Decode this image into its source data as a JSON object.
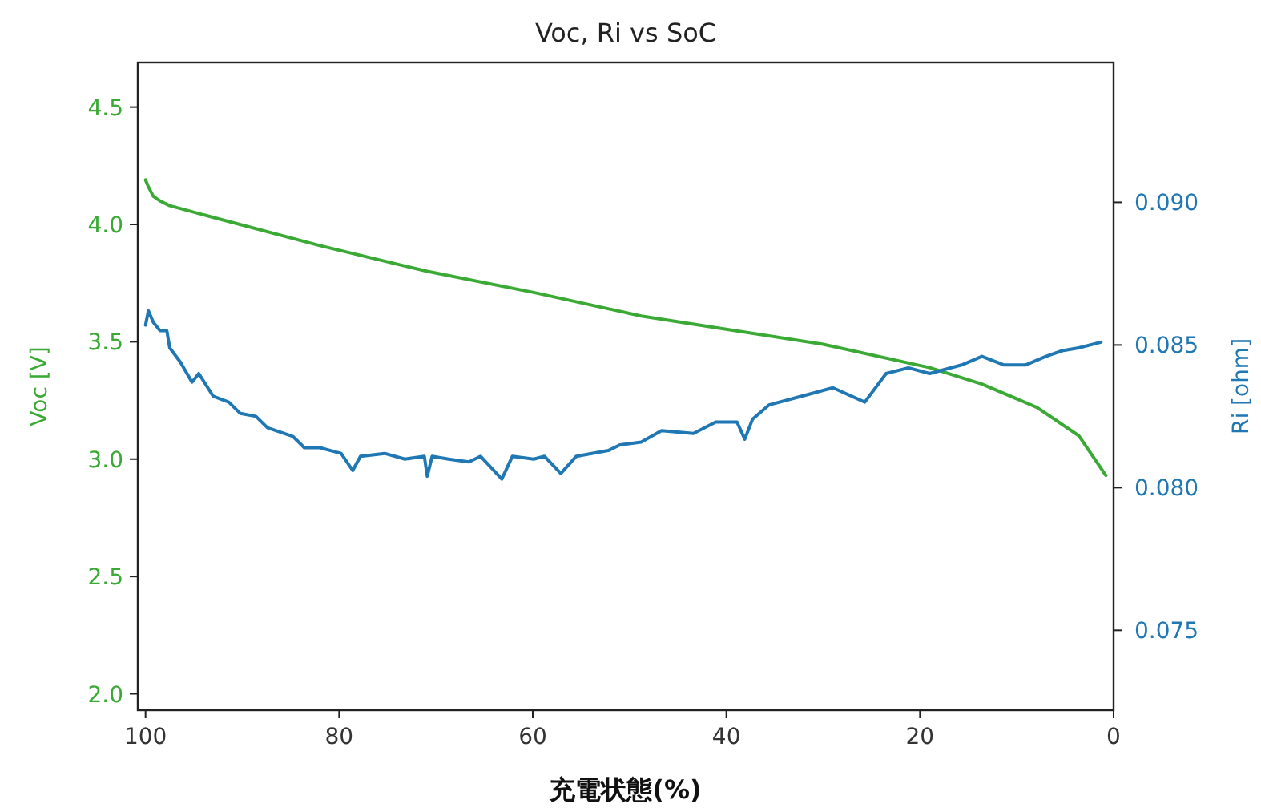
{
  "chart_data": {
    "type": "line",
    "title": "Voc, Ri vs SoC",
    "xlabel": "充電状態(%)",
    "ylabel": "Voc [V]",
    "y2label": "Ri [ohm]",
    "xlim": [
      100.8,
      0
    ],
    "xticks": [
      100,
      80,
      60,
      40,
      20,
      0
    ],
    "ylim": [
      1.93,
      4.69
    ],
    "yticks": [
      {
        "value": 2,
        "label": "2.0"
      },
      2.5,
      {
        "value": 3,
        "label": "3.0"
      },
      3.5,
      {
        "value": 4,
        "label": "4.0"
      },
      4.5
    ],
    "y2lim": [
      0.0722,
      0.0949
    ],
    "y2ticks": [
      0.075,
      {
        "value": 0.08,
        "label": "0.080"
      },
      0.085,
      {
        "value": 0.09,
        "label": "0.090"
      }
    ],
    "line_style": "solid",
    "marker": "none",
    "series": [
      {
        "color": "#3aaa35",
        "axis": "y",
        "x": [
          100,
          99.7,
          99.2,
          98.5,
          97.5,
          93,
          82,
          70.9,
          59.9,
          48.8,
          41.1,
          30.1,
          19,
          13.6,
          7.9,
          3.6,
          0.8
        ],
        "values": [
          4.19,
          4.16,
          4.12,
          4.1,
          4.08,
          4.03,
          3.91,
          3.8,
          3.71,
          3.61,
          3.56,
          3.49,
          3.39,
          3.32,
          3.22,
          3.1,
          2.93
        ]
      },
      {
        "color": "#1f77b4",
        "axis": "y2",
        "x": [
          100,
          99.7,
          99.2,
          98.5,
          97.8,
          97.5,
          96.4,
          95.2,
          94.5,
          93,
          91.4,
          90.2,
          88.6,
          87.4,
          84.8,
          83.6,
          82,
          79.8,
          78.6,
          77.8,
          75.3,
          73.2,
          71.2,
          70.9,
          70.4,
          68.7,
          66.6,
          65.4,
          63.2,
          62.1,
          59.9,
          58.8,
          57.1,
          55.5,
          52.2,
          51,
          48.8,
          46.7,
          43.4,
          41.1,
          38.9,
          38.1,
          37.3,
          35.6,
          32.3,
          29,
          25.7,
          23.5,
          21.2,
          19,
          15.7,
          13.6,
          11.3,
          9.1,
          7,
          5.3,
          3.6,
          1.3
        ],
        "values": [
          0.0857,
          0.0862,
          0.0858,
          0.0855,
          0.0855,
          0.0849,
          0.0844,
          0.0837,
          0.084,
          0.0832,
          0.083,
          0.0826,
          0.0825,
          0.0821,
          0.0818,
          0.0814,
          0.0814,
          0.0812,
          0.0806,
          0.0811,
          0.0812,
          0.081,
          0.0811,
          0.0804,
          0.0811,
          0.081,
          0.0809,
          0.0811,
          0.0803,
          0.0811,
          0.081,
          0.0811,
          0.0805,
          0.0811,
          0.0813,
          0.0815,
          0.0816,
          0.082,
          0.0819,
          0.0823,
          0.0823,
          0.0817,
          0.0824,
          0.0829,
          0.0832,
          0.0835,
          0.083,
          0.084,
          0.0842,
          0.084,
          0.0843,
          0.0846,
          0.0843,
          0.0843,
          0.0846,
          0.0848,
          0.0849,
          0.0851
        ]
      }
    ]
  }
}
